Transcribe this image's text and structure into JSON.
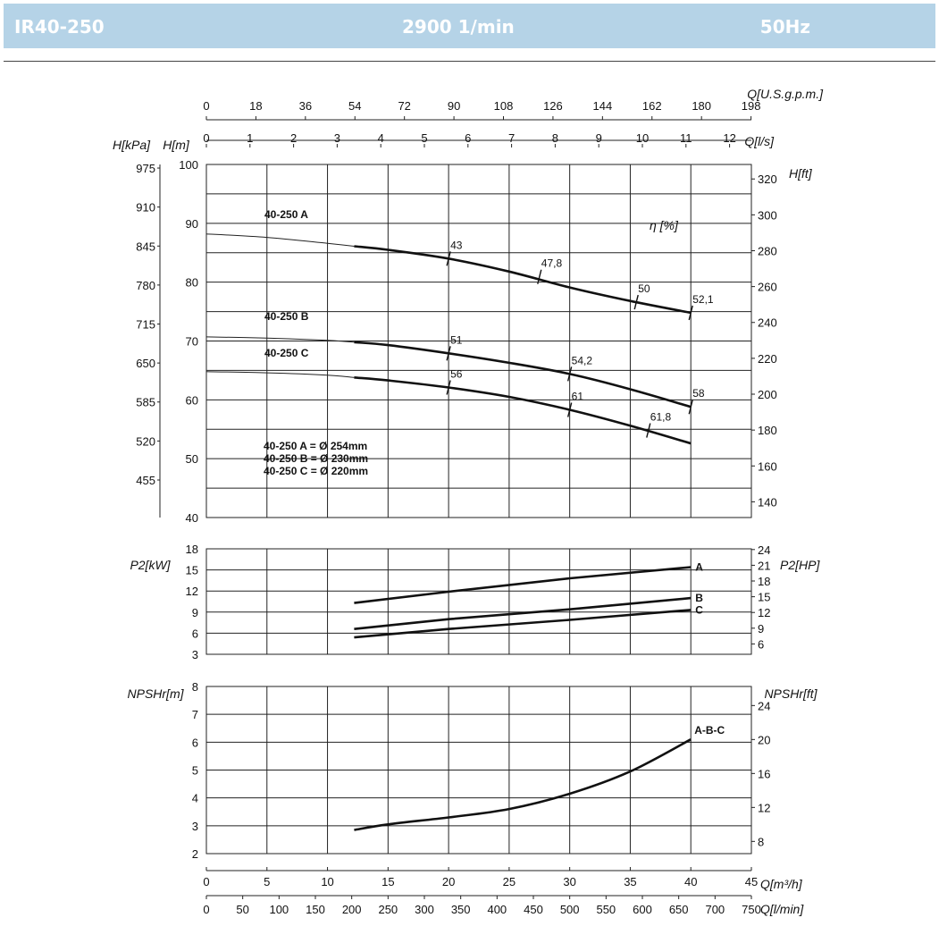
{
  "header": {
    "model": "IR40-250",
    "speed": "2900 1/min",
    "frequency": "50Hz",
    "background_color": "#b5d3e7"
  },
  "chart_data": [
    {
      "type": "line",
      "panel": "head",
      "y_units": {
        "left_kpa": "H[kPa]",
        "left_m": "H[m]",
        "right_ft": "H[ft]"
      },
      "eff_title": "η [%]",
      "x_top_units": {
        "usgpm": "Q[U.S.g.p.m.]",
        "ls": "Q[l/s]"
      },
      "x_top_usgpm_ticks": [
        "0",
        "18",
        "36",
        "54",
        "72",
        "90",
        "108",
        "126",
        "144",
        "162",
        "180",
        "198"
      ],
      "x_top_ls_ticks": [
        "0",
        "1",
        "2",
        "3",
        "4",
        "5",
        "6",
        "7",
        "8",
        "9",
        "10",
        "11",
        "12"
      ],
      "y_m_ticks": [
        "40",
        "50",
        "60",
        "70",
        "80",
        "90",
        "100"
      ],
      "y_kpa_ticks": [
        "975",
        "910",
        "845",
        "780",
        "715",
        "650",
        "585",
        "520",
        "455"
      ],
      "y_ft_ticks": [
        "320",
        "300",
        "280",
        "260",
        "240",
        "220",
        "200",
        "180",
        "160",
        "140"
      ],
      "xlim": [
        0,
        45
      ],
      "ylim": [
        40,
        100
      ],
      "series": [
        {
          "name": "40-250 A",
          "thin_x": [
            0,
            5,
            10,
            12.2
          ],
          "thin_y": [
            88.2,
            87.6,
            86.6,
            86.1
          ],
          "x": [
            12.2,
            15,
            20,
            25,
            30,
            35,
            40
          ],
          "y": [
            86.1,
            85.5,
            84.0,
            81.8,
            79.1,
            76.8,
            74.8
          ],
          "eff_marks": [
            {
              "label": "43",
              "x": 20,
              "y": 84.0
            },
            {
              "label": "47,8",
              "x": 27.5,
              "y": 80.9
            },
            {
              "label": "50",
              "x": 35.5,
              "y": 76.6
            },
            {
              "label": "52,1",
              "x": 40,
              "y": 74.8
            }
          ]
        },
        {
          "name": "40-250 B",
          "thin_x": [
            0,
            5,
            10,
            12.2
          ],
          "thin_y": [
            70.7,
            70.5,
            70.1,
            69.8
          ],
          "x": [
            12.2,
            15,
            20,
            25,
            30,
            35,
            40
          ],
          "y": [
            69.8,
            69.3,
            67.9,
            66.3,
            64.4,
            61.8,
            58.8
          ],
          "eff_marks": [
            {
              "label": "51",
              "x": 20,
              "y": 67.9
            },
            {
              "label": "54,2",
              "x": 30,
              "y": 64.4
            },
            {
              "label": "58",
              "x": 40,
              "y": 58.8
            }
          ]
        },
        {
          "name": "40-250 C",
          "thin_x": [
            0,
            5,
            10,
            12.2
          ],
          "thin_y": [
            64.8,
            64.6,
            64.2,
            63.8
          ],
          "x": [
            12.2,
            15,
            20,
            25,
            30,
            35,
            40
          ],
          "y": [
            63.8,
            63.3,
            62.1,
            60.5,
            58.3,
            55.6,
            52.6
          ],
          "eff_marks": [
            {
              "label": "56",
              "x": 20,
              "y": 62.1
            },
            {
              "label": "61",
              "x": 30,
              "y": 58.3
            },
            {
              "label": "61,8",
              "x": 36.5,
              "y": 54.8
            }
          ]
        }
      ],
      "legend_note": [
        "40-250 A = Ø 254mm",
        "40-250 B = Ø 230mm",
        "40-250 C = Ø 220mm"
      ]
    },
    {
      "type": "line",
      "panel": "power",
      "y_units": {
        "left": "P2[kW]",
        "right": "P2[HP]"
      },
      "y_kw_ticks": [
        "18",
        "15",
        "12",
        "9",
        "6",
        "3"
      ],
      "y_hp_ticks": [
        "24",
        "21",
        "18",
        "15",
        "12",
        "9",
        "6"
      ],
      "xlim": [
        0,
        45
      ],
      "ylim": [
        3,
        18
      ],
      "series": [
        {
          "name": "A",
          "x": [
            12.2,
            20,
            30,
            40
          ],
          "y": [
            10.3,
            11.9,
            13.8,
            15.4
          ]
        },
        {
          "name": "B",
          "x": [
            12.2,
            20,
            30,
            40
          ],
          "y": [
            6.6,
            8.0,
            9.4,
            11.0
          ]
        },
        {
          "name": "C",
          "x": [
            12.2,
            20,
            30,
            40
          ],
          "y": [
            5.4,
            6.6,
            7.9,
            9.3
          ]
        }
      ]
    },
    {
      "type": "line",
      "panel": "npsh",
      "y_units": {
        "left": "NPSHr[m]",
        "right": "NPSHr[ft]"
      },
      "y_m_ticks": [
        "8",
        "7",
        "6",
        "5",
        "4",
        "3",
        "2"
      ],
      "y_ft_ticks": [
        "24",
        "20",
        "16",
        "12",
        "8"
      ],
      "xlim": [
        0,
        45
      ],
      "ylim": [
        2,
        8
      ],
      "series": [
        {
          "name": "A-B-C",
          "x": [
            12.2,
            15,
            20,
            25,
            30,
            35,
            40
          ],
          "y": [
            2.85,
            3.05,
            3.3,
            3.6,
            4.15,
            4.95,
            6.1
          ]
        }
      ],
      "x_bottom_units": {
        "m3h": "Q[m³/h]",
        "lmin": "Q[l/min]"
      },
      "x_m3h_ticks": [
        "0",
        "5",
        "10",
        "15",
        "20",
        "25",
        "30",
        "35",
        "40",
        "45"
      ],
      "x_lmin_ticks": [
        "0",
        "50",
        "100",
        "150",
        "200",
        "250",
        "300",
        "350",
        "400",
        "450",
        "500",
        "550",
        "600",
        "650",
        "700",
        "750"
      ]
    }
  ]
}
